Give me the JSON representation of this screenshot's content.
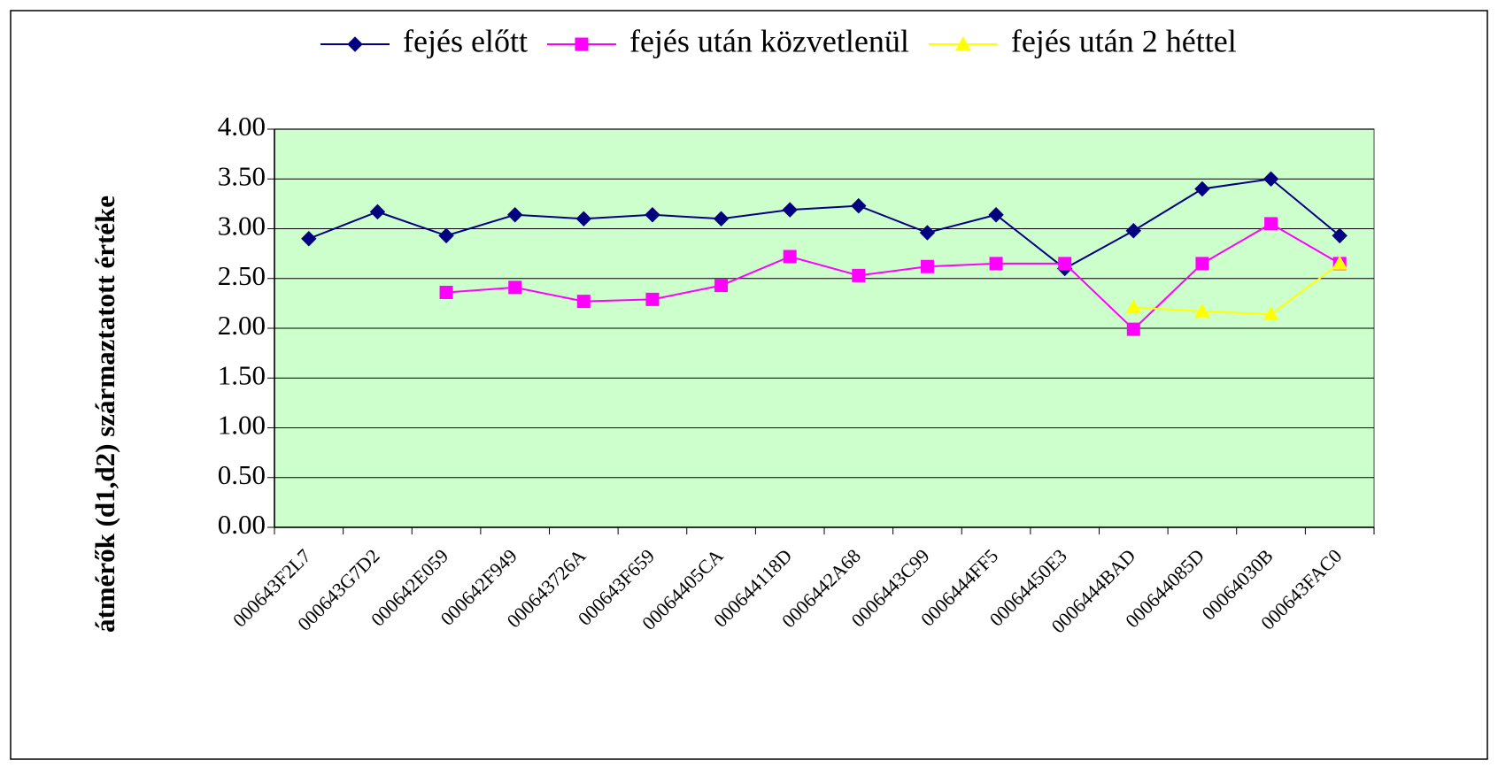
{
  "chart_data": {
    "type": "line",
    "y_label": "átmérők (d1,d2) származtatott értéke",
    "categories": [
      "000643F2L7",
      "000643G7D2",
      "000642E059",
      "000642F949",
      "000643726A",
      "000643F659",
      "00064405CA",
      "000644118D",
      "0006442A68",
      "0006443C99",
      "0006444FF5",
      "00064450E3",
      "0006444BAD",
      "000644085D",
      "00064030B",
      "000643FAC0"
    ],
    "series": [
      {
        "name": "fejés előtt",
        "color": "#000080",
        "marker": "diamond",
        "values": [
          2.9,
          3.17,
          2.93,
          3.14,
          3.1,
          3.14,
          3.1,
          3.19,
          3.23,
          2.96,
          3.14,
          2.6,
          2.98,
          3.4,
          3.5,
          2.93
        ]
      },
      {
        "name": "fejés után közvetlenül",
        "color": "#ff00ff",
        "marker": "square",
        "values": [
          null,
          null,
          2.36,
          2.41,
          2.27,
          2.29,
          2.43,
          2.72,
          2.53,
          2.62,
          2.65,
          2.65,
          1.99,
          2.65,
          3.05,
          2.65
        ]
      },
      {
        "name": "fejés után 2 héttel",
        "color": "#ffff00",
        "marker": "triangle",
        "values": [
          null,
          null,
          null,
          null,
          null,
          null,
          null,
          null,
          null,
          null,
          null,
          null,
          2.21,
          2.17,
          2.14,
          2.65
        ]
      }
    ],
    "ylim": [
      0,
      4
    ],
    "yticks": [
      {
        "value": 0,
        "label": "0.00"
      },
      {
        "value": 0.5,
        "label": "0.50"
      },
      {
        "value": 1,
        "label": "1.00"
      },
      {
        "value": 1.5,
        "label": "1.50"
      },
      {
        "value": 2,
        "label": "2.00"
      },
      {
        "value": 2.5,
        "label": "2.50"
      },
      {
        "value": 3,
        "label": "3.00"
      },
      {
        "value": 3.5,
        "label": "3.50"
      },
      {
        "value": 4,
        "label": "4.00"
      }
    ],
    "grid": true,
    "plot_background": "#ccffcc",
    "legend": "top"
  }
}
